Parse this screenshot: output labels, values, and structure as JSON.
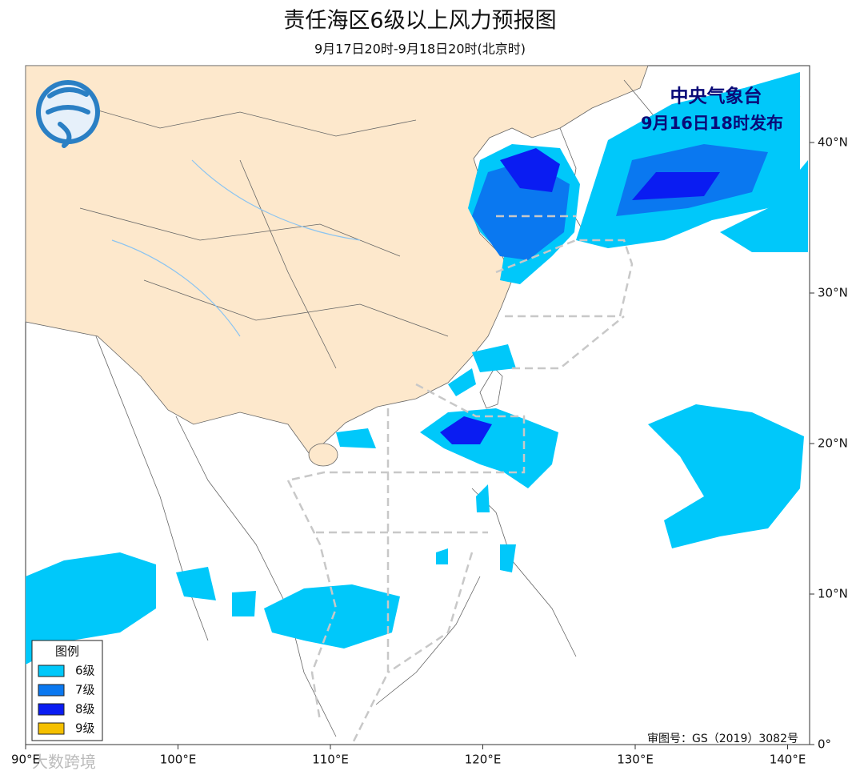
{
  "title": "责任海区6级以上风力预报图",
  "subtitle": "9月17日20时-9月18日20时(北京时)",
  "issuer": {
    "name": "中央气象台",
    "time": "9月16日18时发布"
  },
  "legend": {
    "title": "图例",
    "items": [
      {
        "label": "6级",
        "color": "#00c8fa"
      },
      {
        "label": "7级",
        "color": "#0a78f0"
      },
      {
        "label": "8级",
        "color": "#0a1cf2"
      },
      {
        "label": "9级",
        "color": "#f5c000"
      }
    ]
  },
  "lon_ticks": [
    {
      "value": 90,
      "label": "90°E"
    },
    {
      "value": 100,
      "label": "100°E"
    },
    {
      "value": 110,
      "label": "110°E"
    },
    {
      "value": 120,
      "label": "120°E"
    },
    {
      "value": 130,
      "label": "130°E"
    },
    {
      "value": 140,
      "label": "140°E"
    }
  ],
  "lat_ticks": [
    {
      "value": 0,
      "label": "0°"
    },
    {
      "value": 10,
      "label": "10°N"
    },
    {
      "value": 20,
      "label": "20°N"
    },
    {
      "value": 30,
      "label": "30°N"
    },
    {
      "value": 40,
      "label": "40°N"
    }
  ],
  "approval": "审图号：GS（2019）3082号",
  "watermark": "大数跨境"
}
